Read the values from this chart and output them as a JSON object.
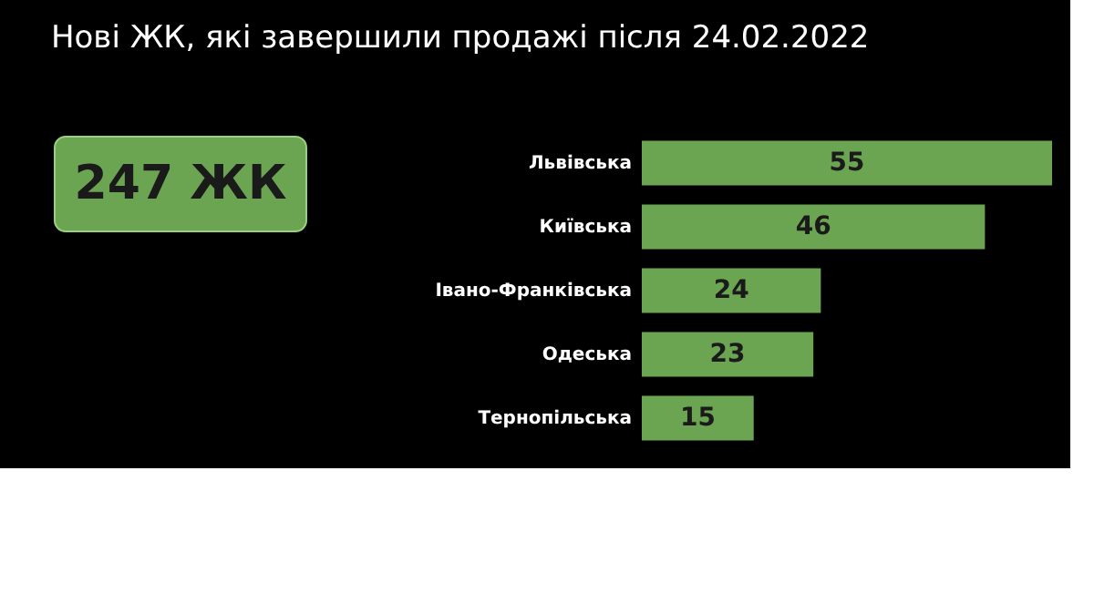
{
  "chart_data": {
    "type": "bar",
    "orientation": "horizontal",
    "title": "Нові ЖК, які завершили продажі після 24.02.2022",
    "categories": [
      "Львівська",
      "Київська",
      "Івано-Франківська",
      "Одеська",
      "Тернопільська"
    ],
    "values": [
      55,
      46,
      24,
      23,
      15
    ],
    "color": "#6ba552",
    "data_labels": true,
    "annotations": [
      "247 ЖК"
    ]
  }
}
